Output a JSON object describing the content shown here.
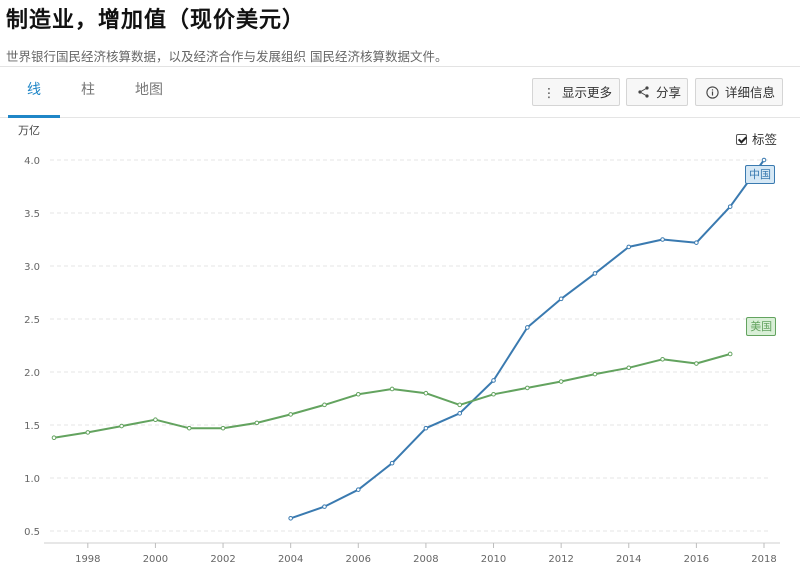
{
  "page": {
    "title": "制造业，增加值（现价美元）",
    "source": "世界银行国民经济核算数据，以及经济合作与发展组织 国民经济核算数据文件。"
  },
  "tabs": [
    {
      "label": "线",
      "active": true
    },
    {
      "label": "柱",
      "active": false
    },
    {
      "label": "地图",
      "active": false
    }
  ],
  "toolbar": {
    "more": {
      "label": "显示更多",
      "icon": "vertical-dots-icon"
    },
    "share": {
      "label": "分享",
      "icon": "share-icon"
    },
    "details": {
      "label": "详细信息",
      "icon": "info-icon"
    }
  },
  "legend": {
    "checkbox_label": "标签",
    "checked": true
  },
  "chart_data": {
    "type": "line",
    "title": "",
    "xlabel": "",
    "ylabel": "万亿",
    "ylim": [
      0.5,
      4.0
    ],
    "xlim": [
      1997,
      2018
    ],
    "yticks": [
      0.5,
      1.0,
      1.5,
      2.0,
      2.5,
      3.0,
      3.5,
      4.0
    ],
    "ytick_labels": [
      "0.5",
      "1.0",
      "1.5",
      "2.0",
      "2.5",
      "3.0",
      "3.5",
      "4.0"
    ],
    "xticks": [
      1998,
      2000,
      2002,
      2004,
      2006,
      2008,
      2010,
      2012,
      2014,
      2016,
      2018
    ],
    "grid": true,
    "series": [
      {
        "name": "中国",
        "color": "#3a7ab0",
        "label_bg": "#d6e8f5",
        "x": [
          2004,
          2005,
          2006,
          2007,
          2008,
          2009,
          2010,
          2011,
          2012,
          2013,
          2014,
          2015,
          2016,
          2017,
          2018
        ],
        "values": [
          0.62,
          0.73,
          0.89,
          1.14,
          1.47,
          1.61,
          1.92,
          2.42,
          2.69,
          2.93,
          3.18,
          3.25,
          3.22,
          3.56,
          4.0
        ]
      },
      {
        "name": "美国",
        "color": "#63a35f",
        "label_bg": "#d9efd7",
        "x": [
          1997,
          1998,
          1999,
          2000,
          2001,
          2002,
          2003,
          2004,
          2005,
          2006,
          2007,
          2008,
          2009,
          2010,
          2011,
          2012,
          2013,
          2014,
          2015,
          2016,
          2017
        ],
        "values": [
          1.38,
          1.43,
          1.49,
          1.55,
          1.47,
          1.47,
          1.52,
          1.6,
          1.69,
          1.79,
          1.84,
          1.8,
          1.69,
          1.79,
          1.85,
          1.91,
          1.98,
          2.04,
          2.12,
          2.08,
          2.17
        ]
      }
    ]
  }
}
